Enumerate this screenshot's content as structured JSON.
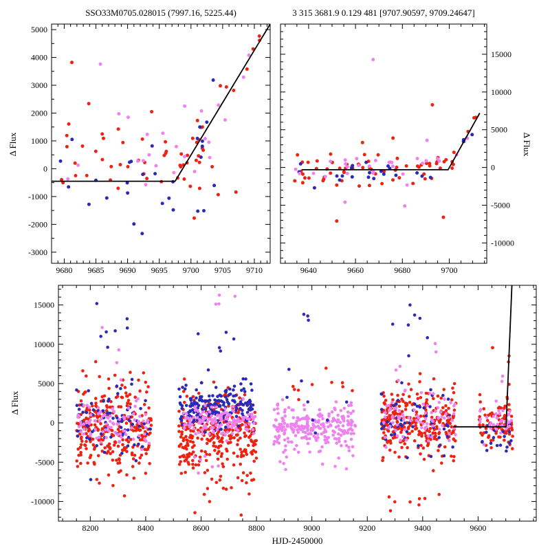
{
  "figure": {
    "background": "#ffffff"
  },
  "colors": {
    "red": "#ee2211",
    "blue": "#2a2ab8",
    "violet": "#ee82ee",
    "fit": "#000000",
    "axis": "#000000"
  },
  "chart_data": [
    {
      "type": "scatter",
      "panel": "p1",
      "title": "SSO33M0705.028015 (7997.16, 5225.44)",
      "xlabel": "",
      "ylabel": "Δ Flux",
      "ylabel_side": "left",
      "xlim": [
        9678,
        9712.5
      ],
      "ylim": [
        -3400,
        5200
      ],
      "xticks": [
        9680,
        9685,
        9690,
        9695,
        9700,
        9705,
        9710
      ],
      "yticks": [
        -3000,
        -2000,
        -1000,
        0,
        1000,
        2000,
        3000,
        4000,
        5000
      ],
      "x_minor": 1,
      "y_minor": 500,
      "grid": false,
      "legend": false,
      "fit_line": [
        [
          9678,
          -450
        ],
        [
          9697.5,
          -450
        ],
        [
          9712.5,
          5200
        ]
      ],
      "point_groups": [
        {
          "color": "red",
          "n": 48,
          "x": [
            9678.5,
            9703.5
          ],
          "y_mean": 250,
          "y_sd": 800
        },
        {
          "color": "blue",
          "n": 20,
          "x": [
            9678.5,
            9704
          ],
          "y_mean": -400,
          "y_sd": 850
        },
        {
          "color": "violet",
          "n": 16,
          "x": [
            9679,
            9704
          ],
          "y_mean": 300,
          "y_sd": 1050
        },
        {
          "color": "red",
          "n": 13,
          "x": [
            9699,
            9711.8
          ],
          "line": [
            [
              9697.5,
              -450
            ],
            [
              9712.5,
              5200
            ]
          ],
          "y_sd": 450
        },
        {
          "color": "blue",
          "n": 6,
          "x": [
            9700,
            9710
          ],
          "line": [
            [
              9697.5,
              -450
            ],
            [
              9712.5,
              5200
            ]
          ],
          "y_sd": 450
        },
        {
          "color": "violet",
          "n": 6,
          "x": [
            9699,
            9711
          ],
          "line": [
            [
              9697.5,
              -450
            ],
            [
              9712.5,
              5200
            ]
          ],
          "y_sd": 500
        }
      ],
      "outliers": [
        [
          9681.2,
          3820,
          "red"
        ],
        [
          9685.7,
          3760,
          "violet"
        ],
        [
          9692.3,
          -2330,
          "blue"
        ],
        [
          9683.9,
          -1280,
          "blue"
        ],
        [
          9697.2,
          -1480,
          "blue"
        ],
        [
          9704.3,
          -930,
          "red"
        ],
        [
          9707.1,
          -840,
          "red"
        ],
        [
          9690.1,
          1850,
          "violet"
        ],
        [
          9699.0,
          2250,
          "violet"
        ],
        [
          9693.8,
          2050,
          "red"
        ]
      ]
    },
    {
      "type": "scatter",
      "panel": "p2",
      "title": "3 315 3681.9 0.129 481 [9707.90597, 9709.24647]",
      "xlabel": "",
      "ylabel": "Δ Flux",
      "ylabel_side": "right",
      "xlim": [
        9628,
        9716
      ],
      "ylim": [
        -12700,
        19000
      ],
      "xticks": [
        9640,
        9660,
        9680,
        9700
      ],
      "yticks": [
        -10000,
        -5000,
        0,
        5000,
        10000,
        15000
      ],
      "x_minor": 5,
      "y_minor": 1000,
      "grid": false,
      "legend": false,
      "fit_line": [
        [
          9637,
          -300
        ],
        [
          9699.5,
          -300
        ],
        [
          9713,
          7200
        ]
      ],
      "point_groups": [
        {
          "color": "red",
          "n": 62,
          "x": [
            9634,
            9701
          ],
          "y_mean": -150,
          "y_sd": 1000
        },
        {
          "color": "blue",
          "n": 20,
          "x": [
            9634,
            9700
          ],
          "y_mean": -250,
          "y_sd": 800
        },
        {
          "color": "violet",
          "n": 26,
          "x": [
            9634,
            9701
          ],
          "y_mean": 50,
          "y_sd": 1100
        },
        {
          "color": "red",
          "n": 7,
          "x": [
            9701,
            9712
          ],
          "line": [
            [
              9699.5,
              -300
            ],
            [
              9713,
              7200
            ]
          ],
          "y_sd": 600
        },
        {
          "color": "violet",
          "n": 4,
          "x": [
            9702,
            9711
          ],
          "line": [
            [
              9699.5,
              -300
            ],
            [
              9713,
              7200
            ]
          ],
          "y_sd": 500
        },
        {
          "color": "blue",
          "n": 3,
          "x": [
            9702,
            9710
          ],
          "line": [
            [
              9699.5,
              -300
            ],
            [
              9713,
              7200
            ]
          ],
          "y_sd": 500
        }
      ],
      "outliers": [
        [
          9667.5,
          14300,
          "violet"
        ],
        [
          9692.8,
          8300,
          "red"
        ],
        [
          9652,
          -7100,
          "red"
        ],
        [
          9697.5,
          -6600,
          "red"
        ],
        [
          9655.5,
          -4600,
          "violet"
        ],
        [
          9681,
          -5100,
          "violet"
        ],
        [
          9642.5,
          -2700,
          "blue"
        ],
        [
          9676,
          3900,
          "red"
        ],
        [
          9663,
          3300,
          "red"
        ],
        [
          9690.5,
          3600,
          "violet"
        ]
      ]
    },
    {
      "type": "scatter",
      "panel": "p3",
      "title": "",
      "xlabel": "HJD-2450000",
      "ylabel": "Δ Flux",
      "ylabel_side": "left",
      "xlim": [
        8085,
        9810
      ],
      "ylim": [
        -12500,
        17500
      ],
      "xticks": [
        8200,
        8400,
        8600,
        8800,
        9000,
        9200,
        9400,
        9600
      ],
      "yticks": [
        -10000,
        -5000,
        0,
        5000,
        10000,
        15000
      ],
      "x_minor": 50,
      "y_minor": 1000,
      "grid": false,
      "legend": false,
      "fit_line": [
        [
          9510,
          -500
        ],
        [
          9701,
          -500
        ],
        [
          9723,
          18200
        ]
      ],
      "point_groups": [
        {
          "color": "red",
          "n": 290,
          "x": [
            8150,
            8420
          ],
          "y_mean": -1100,
          "y_sd": 2700
        },
        {
          "color": "blue",
          "n": 85,
          "x": [
            8150,
            8420
          ],
          "y_mean": 300,
          "y_sd": 1900
        },
        {
          "color": "violet",
          "n": 85,
          "x": [
            8155,
            8420
          ],
          "y_mean": 200,
          "y_sd": 1300
        },
        {
          "color": "blue",
          "n": 7,
          "x": [
            8210,
            8345
          ],
          "y_mean": 12500,
          "y_sd": 1800
        },
        {
          "color": "violet",
          "n": 4,
          "x": [
            8230,
            8330
          ],
          "y_mean": 8800,
          "y_sd": 1400
        },
        {
          "color": "red",
          "n": 3,
          "x": [
            8200,
            8300
          ],
          "y_mean": 6500,
          "y_sd": 800
        },
        {
          "color": "red",
          "n": 310,
          "x": [
            8520,
            8800
          ],
          "y_mean": -1400,
          "y_sd": 2600
        },
        {
          "color": "blue",
          "n": 190,
          "x": [
            8520,
            8790
          ],
          "y_mean": 1900,
          "y_sd": 1400
        },
        {
          "color": "violet",
          "n": 140,
          "x": [
            8525,
            8795
          ],
          "y_mean": 100,
          "y_sd": 1000
        },
        {
          "color": "blue",
          "n": 6,
          "x": [
            8560,
            8720
          ],
          "y_mean": 9800,
          "y_sd": 2300
        },
        {
          "color": "violet",
          "n": 4,
          "x": [
            8650,
            8730
          ],
          "y_mean": 15800,
          "y_sd": 900
        },
        {
          "color": "red",
          "n": 12,
          "x": [
            8550,
            8780
          ],
          "y_mean": -8600,
          "y_sd": 1700
        },
        {
          "color": "violet",
          "n": 6,
          "x": [
            8560,
            8760
          ],
          "y_mean": -5200,
          "y_sd": 900
        },
        {
          "color": "violet",
          "n": 250,
          "x": [
            8860,
            9160
          ],
          "y_mean": -400,
          "y_sd": 1300
        },
        {
          "color": "violet",
          "n": 14,
          "x": [
            8880,
            9150
          ],
          "y_mean": -4800,
          "y_sd": 1300
        },
        {
          "color": "red",
          "n": 10,
          "x": [
            8880,
            9150
          ],
          "y_mean": 3800,
          "y_sd": 1500
        },
        {
          "color": "blue",
          "n": 8,
          "x": [
            8900,
            9150
          ],
          "y_mean": 3000,
          "y_sd": 2200
        },
        {
          "color": "blue",
          "n": 2,
          "x": [
            8960,
            9000
          ],
          "y_mean": 13500,
          "y_sd": 500
        },
        {
          "color": "red",
          "n": 290,
          "x": [
            9250,
            9520
          ],
          "y_mean": -100,
          "y_sd": 2100
        },
        {
          "color": "blue",
          "n": 55,
          "x": [
            9250,
            9520
          ],
          "y_mean": 600,
          "y_sd": 2400
        },
        {
          "color": "violet",
          "n": 85,
          "x": [
            9255,
            9520
          ],
          "y_mean": 300,
          "y_sd": 1500
        },
        {
          "color": "blue",
          "n": 6,
          "x": [
            9290,
            9430
          ],
          "y_mean": 13200,
          "y_sd": 1400
        },
        {
          "color": "violet",
          "n": 5,
          "x": [
            9280,
            9450
          ],
          "y_mean": 8200,
          "y_sd": 1800
        },
        {
          "color": "red",
          "n": 8,
          "x": [
            9270,
            9500
          ],
          "y_mean": -8800,
          "y_sd": 1500
        },
        {
          "color": "red",
          "n": 85,
          "x": [
            9600,
            9725
          ],
          "y_mean": -300,
          "y_sd": 1500
        },
        {
          "color": "blue",
          "n": 22,
          "x": [
            9605,
            9720
          ],
          "y_mean": -1800,
          "y_sd": 1400
        },
        {
          "color": "violet",
          "n": 38,
          "x": [
            9600,
            9722
          ],
          "y_mean": 200,
          "y_sd": 1100
        },
        {
          "color": "red",
          "n": 2,
          "x": [
            9640,
            9660
          ],
          "y_mean": 9700,
          "y_sd": 500
        },
        {
          "color": "violet",
          "n": 2,
          "x": [
            9670,
            9690
          ],
          "y_mean": 5300,
          "y_sd": 400
        },
        {
          "color": "red",
          "n": 3,
          "x": [
            9705,
            9718
          ],
          "line": [
            [
              9701,
              -500
            ],
            [
              9723,
              18200
            ]
          ],
          "y_sd": 800
        }
      ],
      "outliers": [
        [
          8985,
          13600,
          "blue"
        ],
        [
          9712,
          4900,
          "red"
        ]
      ]
    }
  ]
}
